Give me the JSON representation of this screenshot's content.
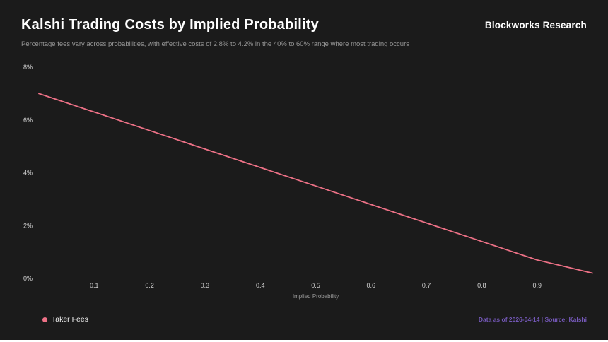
{
  "header": {
    "title": "Kalshi Trading Costs by Implied Probability",
    "brand": "Blockworks Research",
    "subtitle": "Percentage fees vary across probabilities, with effective costs of 2.8% to 4.2% in the 40% to 60% range where most trading occurs"
  },
  "legend": {
    "taker_fees_label": "Taker Fees",
    "taker_fees_color": "#ed7186"
  },
  "footer": {
    "source": "Data as of 2026-04-14 | Source: Kalshi"
  },
  "colors": {
    "background": "#1b1b1b",
    "line": "#ed7186",
    "source_purple": "#7458b8",
    "title_white": "#ffffff",
    "subtitle_gray": "#969696"
  },
  "chart_data": {
    "type": "line",
    "title": "Kalshi Trading Costs by Implied Probability",
    "subtitle": "Percentage fees vary across probabilities, with effective costs of 2.8% to 4.2% in the 40% to 60% range where most trading occurs",
    "xlabel": "Implied Probability",
    "ylabel": "",
    "xlim": [
      0,
      1
    ],
    "ylim": [
      0,
      8
    ],
    "xticks": [
      0.1,
      0.2,
      0.3,
      0.4,
      0.5,
      0.6,
      0.7,
      0.8,
      0.9
    ],
    "yticks": [
      0,
      2,
      4,
      6,
      8
    ],
    "ytick_suffix": "%",
    "grid": false,
    "legend_position": "bottom-left",
    "series": [
      {
        "name": "Taker Fees",
        "color": "#ed7186",
        "x": [
          0.0,
          0.1,
          0.2,
          0.3,
          0.4,
          0.5,
          0.6,
          0.7,
          0.8,
          0.9,
          1.0
        ],
        "values": [
          7.0,
          6.3,
          5.6,
          4.9,
          4.2,
          3.5,
          2.8,
          2.1,
          1.4,
          0.7,
          0.2
        ]
      }
    ]
  }
}
